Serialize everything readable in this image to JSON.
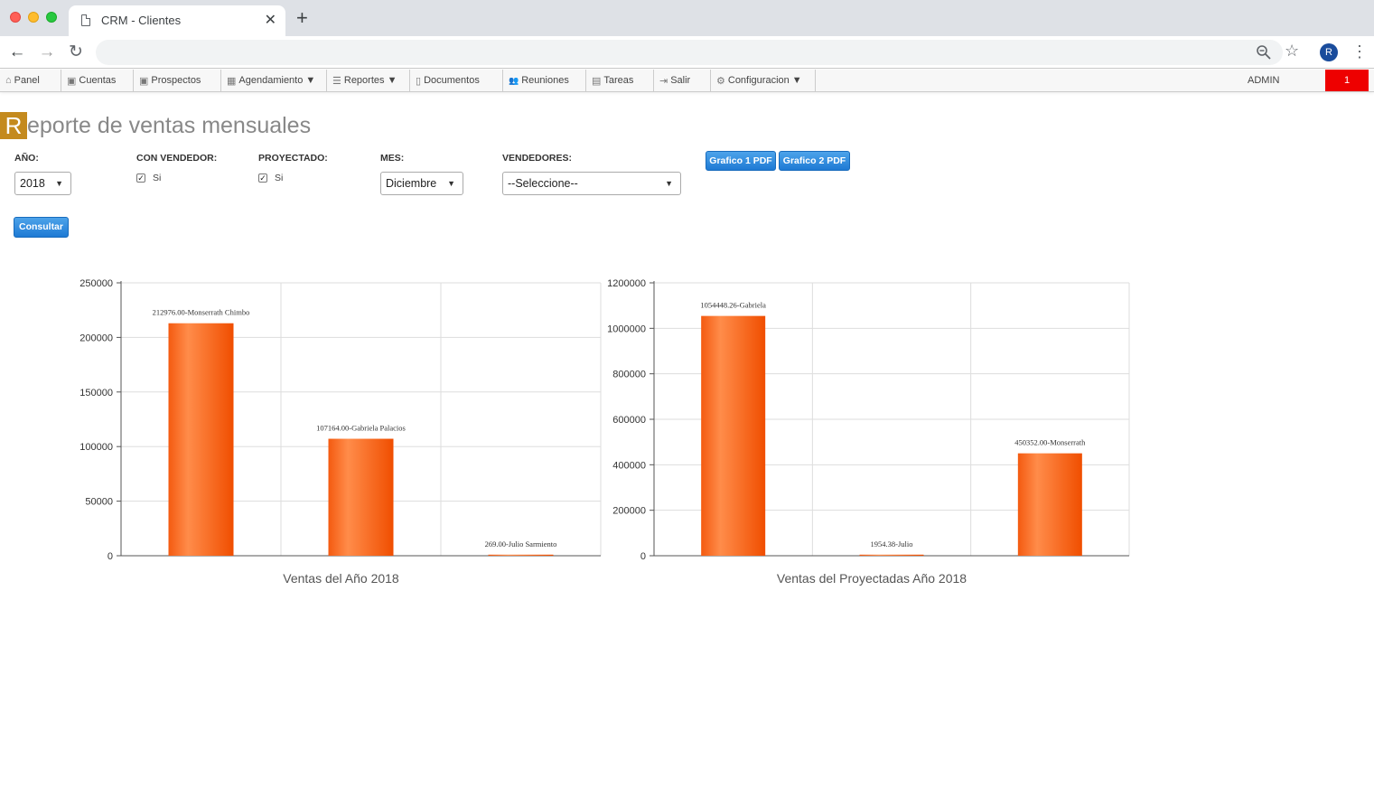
{
  "browser": {
    "tab_title": "CRM - Clientes",
    "profile_initial": "R"
  },
  "menu": {
    "items": [
      {
        "icon": "home-icon",
        "glyph": "⌂",
        "label": "Panel"
      },
      {
        "icon": "accounts-icon",
        "glyph": "▣",
        "label": "Cuentas"
      },
      {
        "icon": "prospects-icon",
        "glyph": "▣",
        "label": "Prospectos"
      },
      {
        "icon": "calendar-icon",
        "glyph": "▦",
        "label": "Agendamiento ▼"
      },
      {
        "icon": "list-icon",
        "glyph": "☰",
        "label": "Reportes ▼"
      },
      {
        "icon": "document-icon",
        "glyph": "▯",
        "label": "Documentos"
      },
      {
        "icon": "users-icon",
        "glyph": "👥",
        "label": "Reuniones"
      },
      {
        "icon": "tasks-icon",
        "glyph": "▤",
        "label": "Tareas"
      },
      {
        "icon": "logout-icon",
        "glyph": "⇥",
        "label": "Salir"
      },
      {
        "icon": "gear-icon",
        "glyph": "⚙",
        "label": "Configuracion ▼"
      }
    ],
    "user": "ADMIN",
    "badge": "1"
  },
  "page": {
    "title_initial": "R",
    "title_rest": "eporte de ventas mensuales"
  },
  "filters": {
    "year_label": "AÑO:",
    "year_value": "2018",
    "seller_label": "CON VENDEDOR:",
    "seller_check": "Si",
    "projected_label": "PROYECTADO:",
    "projected_check": "Si",
    "month_label": "MES:",
    "month_value": "Diciembre",
    "sellers_label": "VENDEDORES:",
    "sellers_value": "--Seleccione--",
    "consult_button": "Consultar",
    "pdf1_button": "Grafico 1 PDF",
    "pdf2_button": "Grafico 2 PDF"
  },
  "colors": {
    "bar_light": "#ff8c4a",
    "bar_dark": "#f04e00",
    "title_badge": "#c48a1e",
    "alert_red": "#ee0000",
    "button_blue": "#1e7ad4"
  },
  "chart_data": [
    {
      "type": "bar",
      "title": "Ventas del Año 2018",
      "categories": [
        "",
        "",
        ""
      ],
      "values": [
        212976.0,
        107164.0,
        269.0
      ],
      "data_labels": [
        "212976.00-Monserrath Chimbo",
        "107164.00-Gabriela Palacios",
        "269.00-Julio Sarmiento"
      ],
      "ylim": [
        0,
        250000
      ],
      "yticks": [
        "0",
        "50000",
        "100000",
        "150000",
        "200000",
        "250000"
      ],
      "grid": true
    },
    {
      "type": "bar",
      "title": "Ventas del Proyectadas Año 2018",
      "categories": [
        "",
        "",
        ""
      ],
      "values": [
        1054448.26,
        1954.38,
        450352.0
      ],
      "data_labels": [
        "1054448.26-Gabriela",
        "1954.38-Julio",
        "450352.00-Monserrath"
      ],
      "ylim": [
        0,
        1200000
      ],
      "yticks": [
        "0",
        "200000",
        "400000",
        "600000",
        "800000",
        "1000000",
        "1200000"
      ],
      "grid": true
    }
  ]
}
